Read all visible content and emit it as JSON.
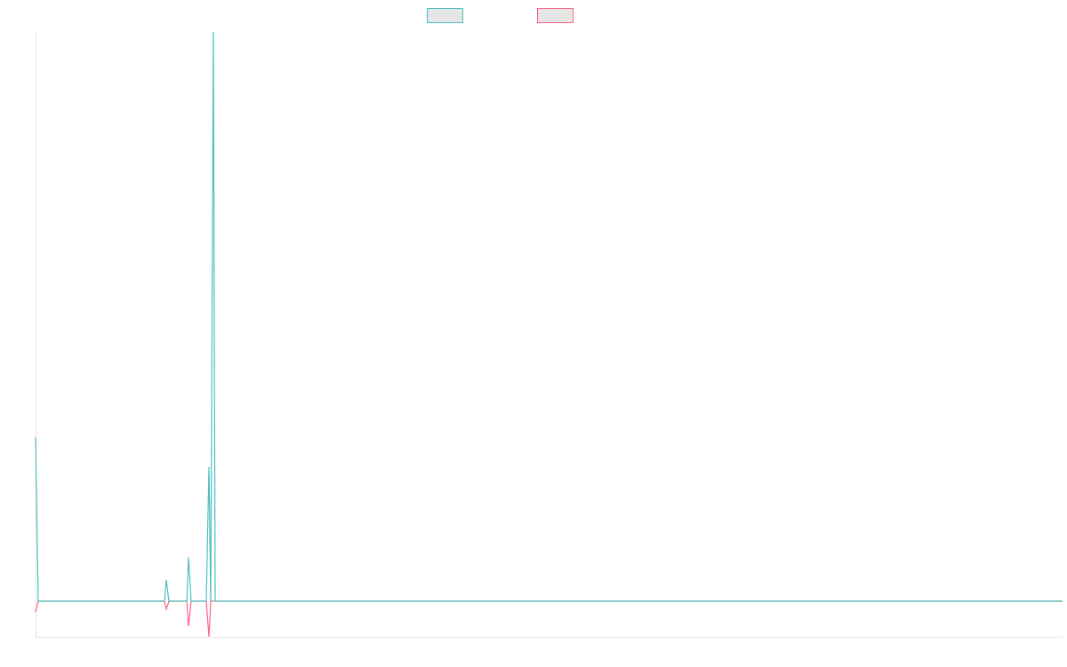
{
  "chart_data": {
    "type": "line",
    "x": [
      0,
      3,
      145,
      147,
      150,
      170,
      172,
      175,
      192,
      195,
      197,
      200,
      202,
      1155
    ],
    "xlim": [
      0,
      1155
    ],
    "ylim": [
      -40,
      640
    ],
    "series": [
      {
        "color": "#4bc0c0",
        "values": [
          184,
          0,
          0,
          24,
          0,
          0,
          49,
          0,
          0,
          151,
          0,
          640,
          0,
          0
        ]
      },
      {
        "color": "#ff6384",
        "values": [
          -12,
          0,
          0,
          -9,
          0,
          0,
          -28,
          0,
          0,
          -40,
          0,
          0,
          0,
          0
        ]
      }
    ]
  }
}
